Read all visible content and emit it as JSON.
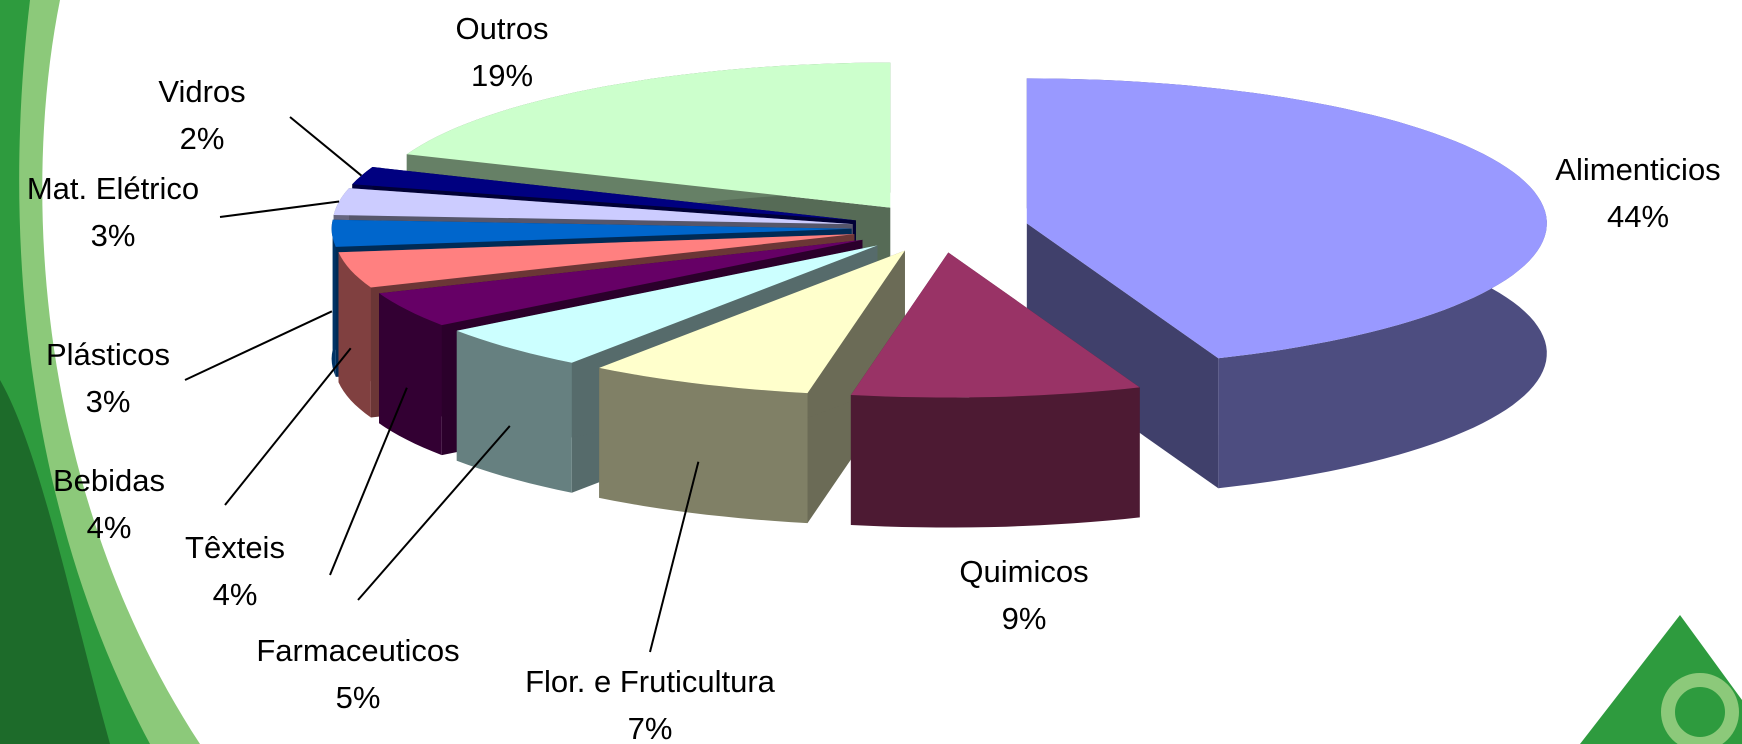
{
  "chart_data": {
    "type": "pie",
    "categories": [
      "Alimenticios",
      "Quimicos",
      "Flor. e Fruticultura",
      "Farmaceuticos",
      "Têxteis",
      "Bebidas",
      "Plásticos",
      "Mat. Elétrico",
      "Vidros",
      "Outros"
    ],
    "values": [
      44,
      9,
      7,
      5,
      4,
      4,
      3,
      3,
      2,
      19
    ],
    "value_labels": [
      "44%",
      "9%",
      "7%",
      "5%",
      "4%",
      "4%",
      "3%",
      "3%",
      "2%",
      "19%"
    ],
    "colors": [
      "#9999ff",
      "#993366",
      "#ffffcc",
      "#ccffff",
      "#660066",
      "#ff8080",
      "#0066cc",
      "#ccccff",
      "#000080",
      "#ccffcc"
    ]
  }
}
